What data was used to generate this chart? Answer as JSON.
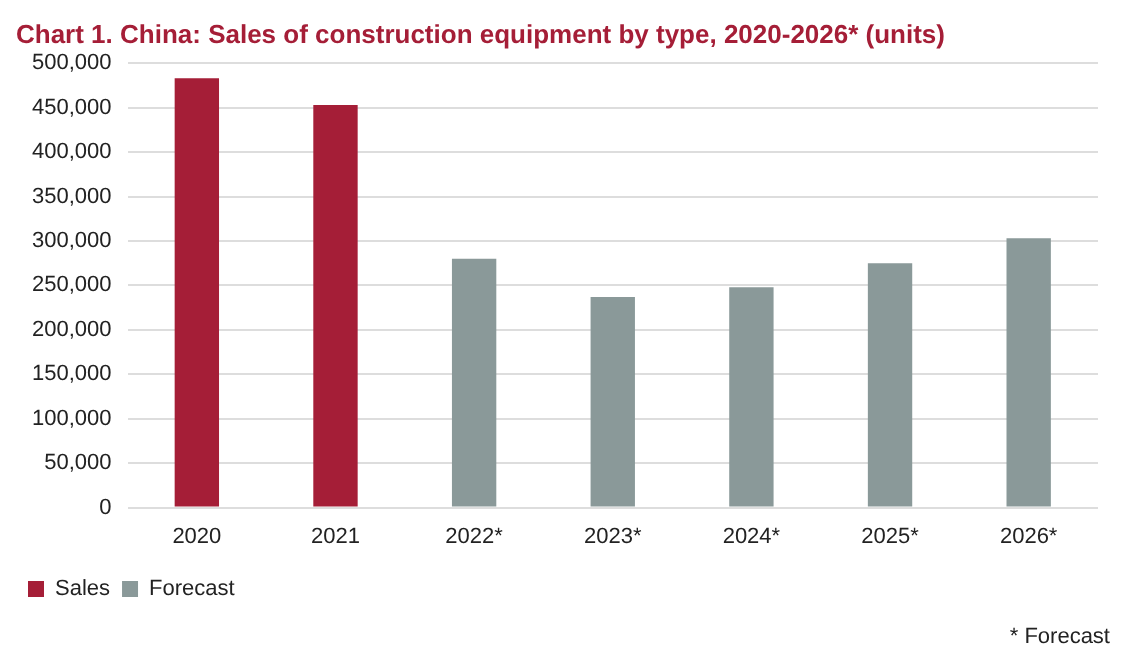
{
  "chart_data": {
    "type": "bar",
    "title": "Chart 1. China: Sales of construction equipment by type, 2020-2026* (units)",
    "categories": [
      "2020",
      "2021",
      "2022*",
      "2023*",
      "2024*",
      "2025*",
      "2026*"
    ],
    "series": [
      {
        "name": "Sales",
        "color": "#a51e37",
        "values": [
          483000,
          453000,
          null,
          null,
          null,
          null,
          null
        ]
      },
      {
        "name": "Forecast",
        "color": "#8a9999",
        "values": [
          null,
          null,
          280000,
          237000,
          248000,
          275000,
          303000
        ]
      }
    ],
    "ylim": [
      0,
      500000
    ],
    "yticks": [
      0,
      {
        "value": 50000,
        "label": "50,000"
      },
      {
        "value": 100000,
        "label": "100,000"
      },
      {
        "value": 150000,
        "label": "150,000"
      },
      {
        "value": 200000,
        "label": "200,000"
      },
      {
        "value": 250000,
        "label": "250,000"
      },
      {
        "value": 300000,
        "label": "300,000"
      },
      {
        "value": 350000,
        "label": "350,000"
      },
      {
        "value": 400000,
        "label": "400,000"
      },
      {
        "value": 450000,
        "label": "450,000"
      },
      {
        "value": 500000,
        "label": "500,000"
      }
    ],
    "grid": "y",
    "legend": "bottom left",
    "annotations": [
      "* Forecast"
    ]
  }
}
